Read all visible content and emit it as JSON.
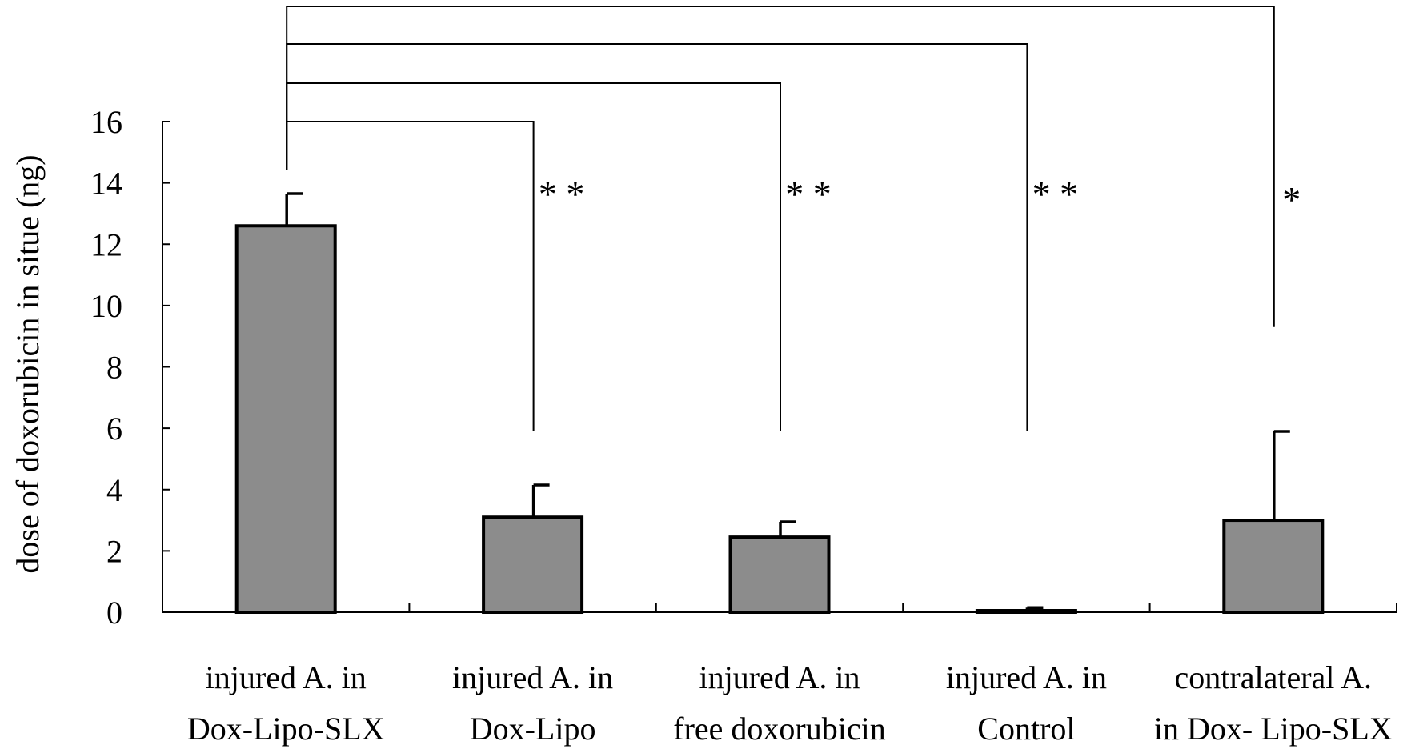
{
  "chart_data": {
    "type": "bar",
    "title": "",
    "ylabel": "dose of doxorubicin in situe (ng)",
    "xlabel": "",
    "ylim": [
      0,
      16
    ],
    "yticks": [
      "0",
      "2",
      "4",
      "6",
      "8",
      "10",
      "12",
      "14",
      "16"
    ],
    "categories": [
      [
        "injured A. in",
        "Dox-Lipo-SLX"
      ],
      [
        "injured A. in",
        "Dox-Lipo"
      ],
      [
        "injured A. in",
        "free doxorubicin"
      ],
      [
        "injured A. in",
        "Control"
      ],
      [
        "contralateral A.",
        "in Dox- Lipo-SLX"
      ]
    ],
    "values": [
      12.6,
      3.1,
      2.45,
      0.05,
      3.0
    ],
    "errors": [
      1.05,
      1.05,
      0.5,
      0.1,
      2.9
    ],
    "bar_color": "#8c8c8c",
    "comparisons": [
      {
        "from": 0,
        "to": 1,
        "label": "**",
        "end_value": 5.9
      },
      {
        "from": 0,
        "to": 2,
        "label": "**",
        "end_value": 5.9
      },
      {
        "from": 0,
        "to": 3,
        "label": "**",
        "end_value": 5.9
      },
      {
        "from": 0,
        "to": 4,
        "label": "*",
        "end_value": 9.3
      }
    ]
  }
}
